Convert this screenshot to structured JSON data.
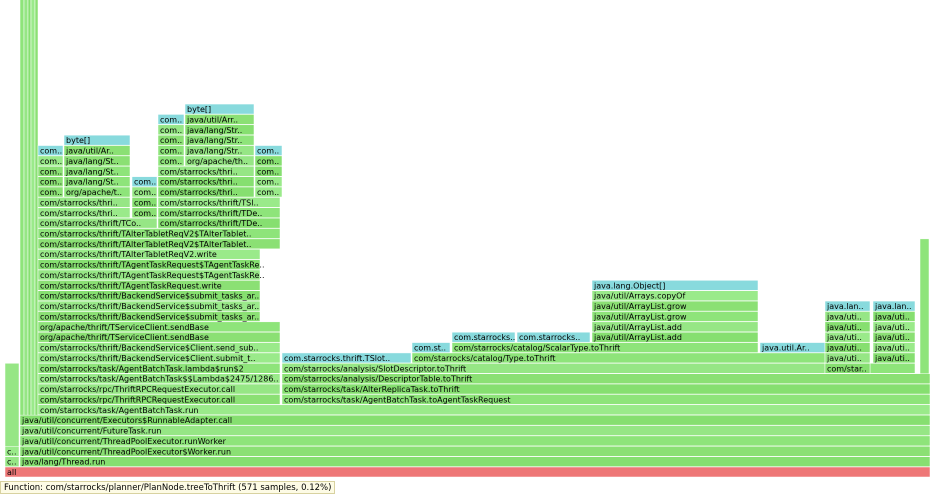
{
  "frames": [
    "all",
    "c..",
    "java/lang/Thread.run",
    "c..",
    "java/util/concurrent/ThreadPoolExecutor$Worker.run",
    "java/util/concurrent/ThreadPoolExecutor.runWorker",
    "java/util/concurrent/FutureTask.run",
    "java/util/concurrent/Executors$RunnableAdapter.call",
    "com/starrocks/task/AgentBatchTask.run",
    "com/starrocks/rpc/ThriftRPCRequestExecutor.call",
    "com/starrocks/task/AgentBatchTask.toAgentTaskRequest",
    "com/starrocks/rpc/ThriftRPCRequestExecutor.call",
    "com/starrocks/task/AlterReplicaTask.toThrift",
    "com/starrocks/task/AgentBatchTask$$Lambda$2475/1286..",
    "com/starrocks/analysis/DescriptorTable.toThrift",
    "com/starrocks/task/AgentBatchTask.lambda$run$2",
    "com/starrocks/analysis/SlotDescriptor.toThrift",
    "com/star..",
    "com/starrocks/thrift/BackendService$Client.submit_t..",
    "com.starrocks.thrift.TSlot..",
    "com/starrocks/catalog/Type.toThrift",
    "java/uti..",
    "java/uti..",
    "com/starrocks/thrift/BackendService$Client.send_sub..",
    "com.st..",
    "com/starrocks/catalog/ScalarType.toThrift",
    "java.util.Ar..",
    "java/uti..",
    "java/uti..",
    "org/apache/thrift/TServiceClient.sendBase",
    "com.starrocks..",
    "com.starrocks..",
    "java/util/ArrayList.add",
    "java/uti..",
    "java/uti..",
    "org/apache/thrift/TServiceClient.sendBase",
    "java/util/ArrayList.add",
    "java/uti..",
    "java/uti..",
    "com/starrocks/thrift/BackendService$submit_tasks_ar..",
    "java/util/ArrayList.grow",
    "java/uti..",
    "java/uti..",
    "com/starrocks/thrift/BackendService$submit_tasks_ar..",
    "java/util/ArrayList.grow",
    "java.lan..",
    "java.lan..",
    "com/starrocks/thrift/BackendService$submit_tasks_ar..",
    "java/util/Arrays.copyOf",
    "com/starrocks/thrift/TAgentTaskRequest.write",
    "java.lang.Object[]",
    "com/starrocks/thrift/TAgentTaskRequest$TAgentTaskRe..",
    "com/starrocks/thrift/TAgentTaskRequest$TAgentTaskRe..",
    "com/starrocks/thrift/TAlterTabletReqV2.write",
    "com/starrocks/thrift/TAlterTabletReqV2$TAlterTablet..",
    "com/starrocks/thrift/TAlterTabletReqV2$TAlterTablet..",
    "com/starrocks/thrift/TCo..",
    "com/starrocks/thrift/TDe..",
    "com/starrocks/thri..",
    "com..",
    "com/starrocks/thrift/TDe..",
    "com/starrocks/thri..",
    "com..",
    "com/starrocks/thrift/TSl..",
    "com..",
    "org/apache/t..",
    "com..",
    "com/starrocks/thri..",
    "com..",
    "com..",
    "java/lang/St..",
    "com..",
    "com/starrocks/thri..",
    "com..",
    "com..",
    "java/lang/St..",
    "com/starrocks/thri..",
    "com..",
    "com..",
    "java/lang/St..",
    "com..",
    "org/apache/th..",
    "com..",
    "com..",
    "java/util/Ar..",
    "com..",
    "java/lang/Str..",
    "com..",
    "byte[]",
    "com..",
    "java/lang/Str..",
    "com..",
    "java/lang/Str..",
    "com..",
    "java/util/Arr..",
    "byte[]"
  ],
  "status": "Function: com/starrocks/planner/PlanNode.treeToThrift (571 samples, 0.12%)"
}
